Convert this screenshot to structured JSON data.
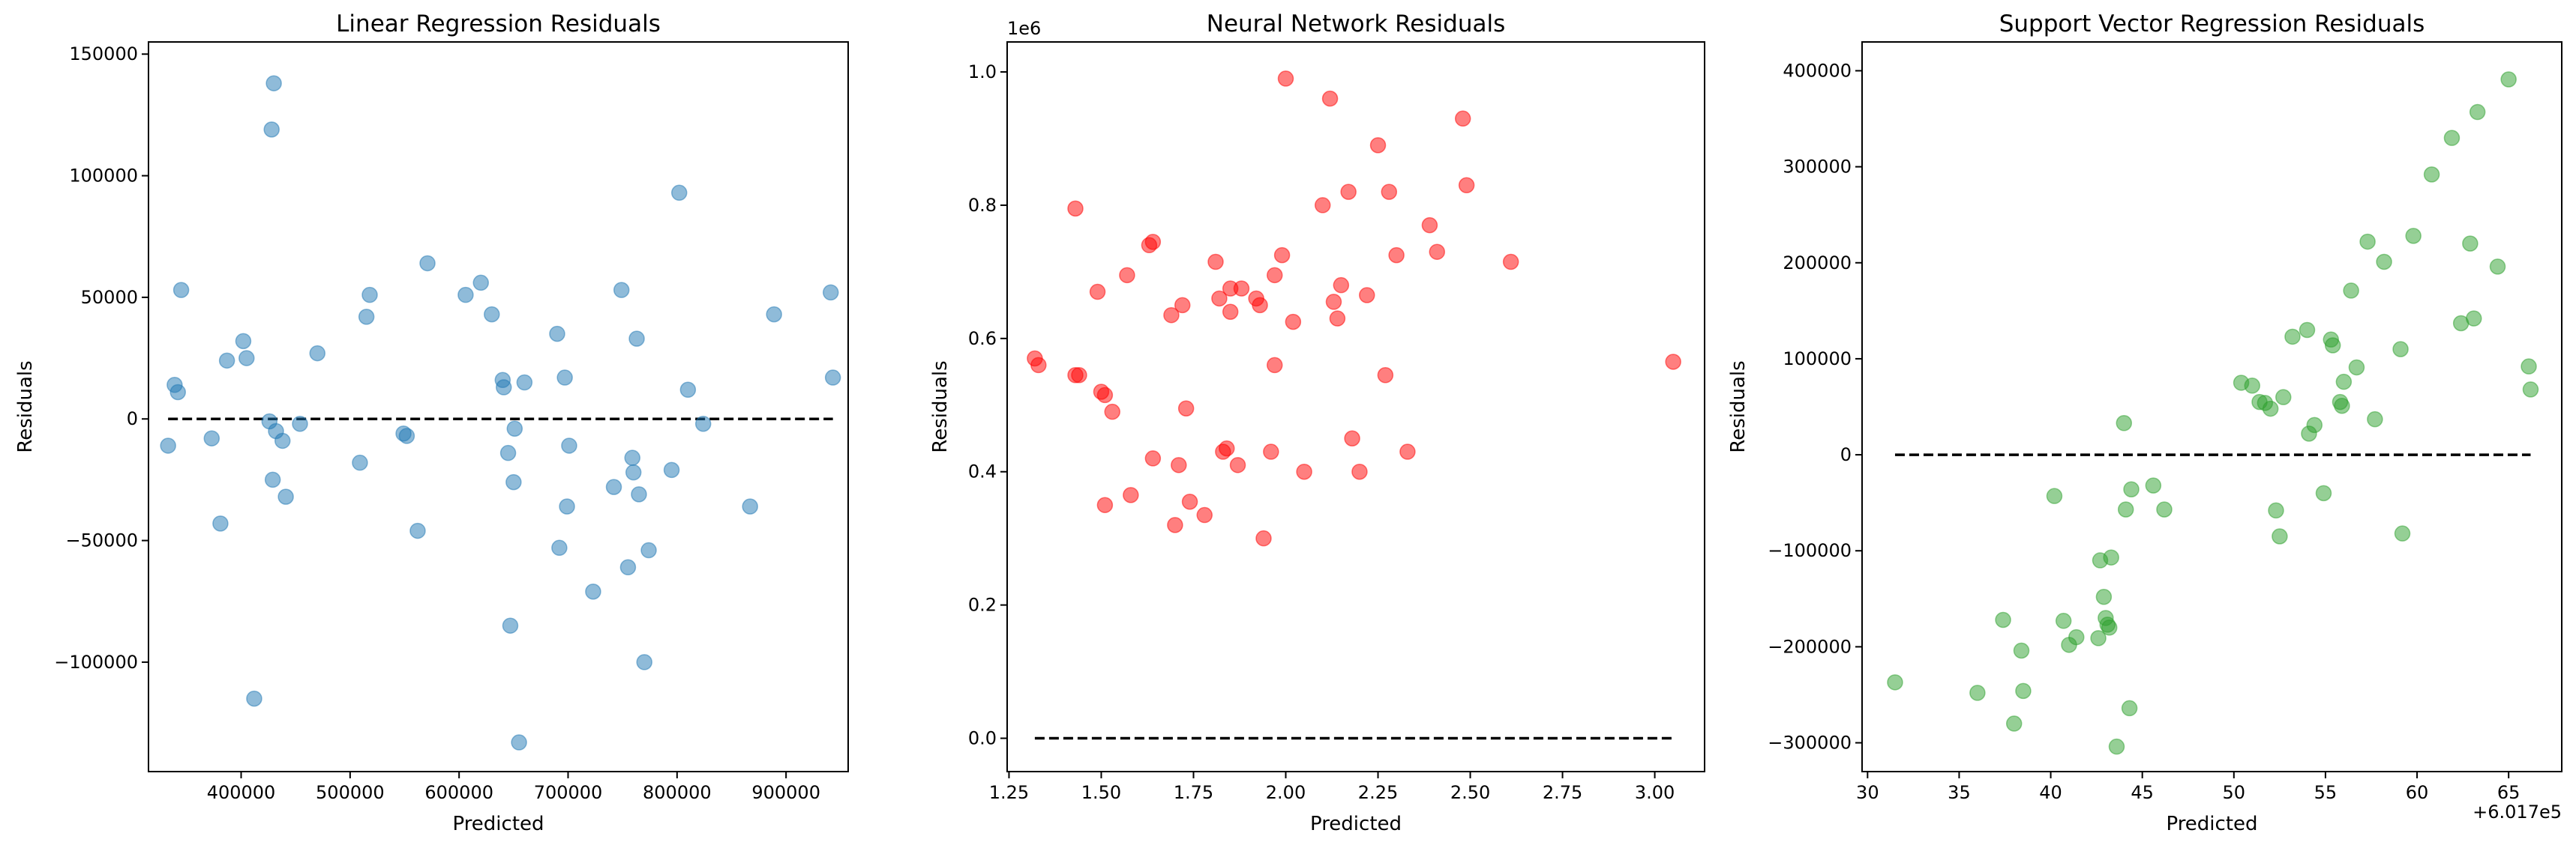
{
  "chart_data": [
    {
      "type": "scatter",
      "title": "Linear Regression Residuals",
      "xlabel": "Predicted",
      "ylabel": "Residuals",
      "color": "#1f77b4",
      "xlim": [
        315000,
        957000
      ],
      "ylim": [
        -145000,
        155000
      ],
      "xticks": [
        400000,
        500000,
        600000,
        700000,
        800000,
        900000
      ],
      "xticklabels": [
        "400000",
        "500000",
        "600000",
        "700000",
        "800000",
        "900000"
      ],
      "yticks": [
        -100000,
        -50000,
        0,
        50000,
        100000,
        150000
      ],
      "yticklabels": [
        "−100000",
        "−50000",
        "0",
        "50000",
        "100000",
        "150000"
      ],
      "offset_label": "",
      "reference_line": {
        "y": 0,
        "x": [
          333000,
          943000
        ],
        "style": "dashed",
        "color": "#000000"
      },
      "points": [
        [
          333000,
          -11000
        ],
        [
          339000,
          14000
        ],
        [
          342000,
          11000
        ],
        [
          345000,
          53000
        ],
        [
          373000,
          -8000
        ],
        [
          381000,
          -43000
        ],
        [
          387000,
          24000
        ],
        [
          402000,
          32000
        ],
        [
          405000,
          25000
        ],
        [
          412000,
          -115000
        ],
        [
          426000,
          -1000
        ],
        [
          428000,
          119000
        ],
        [
          430000,
          138000
        ],
        [
          429000,
          -25000
        ],
        [
          432000,
          -5000
        ],
        [
          438000,
          -9000
        ],
        [
          441000,
          -32000
        ],
        [
          454000,
          -2000
        ],
        [
          470000,
          27000
        ],
        [
          509000,
          -18000
        ],
        [
          515000,
          42000
        ],
        [
          518000,
          51000
        ],
        [
          549000,
          -6000
        ],
        [
          552000,
          -7000
        ],
        [
          562000,
          -46000
        ],
        [
          571000,
          64000
        ],
        [
          606000,
          51000
        ],
        [
          620000,
          56000
        ],
        [
          630000,
          43000
        ],
        [
          640000,
          16000
        ],
        [
          641000,
          13000
        ],
        [
          645000,
          -14000
        ],
        [
          647000,
          -85000
        ],
        [
          650000,
          -26000
        ],
        [
          651000,
          -4000
        ],
        [
          660000,
          15000
        ],
        [
          655000,
          -133000
        ],
        [
          690000,
          35000
        ],
        [
          692000,
          -53000
        ],
        [
          697000,
          17000
        ],
        [
          699000,
          -36000
        ],
        [
          701000,
          -11000
        ],
        [
          723000,
          -71000
        ],
        [
          742000,
          -28000
        ],
        [
          749000,
          53000
        ],
        [
          755000,
          -61000
        ],
        [
          759000,
          -16000
        ],
        [
          760000,
          -22000
        ],
        [
          763000,
          33000
        ],
        [
          765000,
          -31000
        ],
        [
          770000,
          -100000
        ],
        [
          774000,
          -54000
        ],
        [
          795000,
          -21000
        ],
        [
          802000,
          93000
        ],
        [
          810000,
          12000
        ],
        [
          824000,
          -2000
        ],
        [
          867000,
          -36000
        ],
        [
          889000,
          43000
        ],
        [
          941000,
          52000
        ],
        [
          943000,
          17000
        ]
      ]
    },
    {
      "type": "scatter",
      "title": "Neural Network Residuals",
      "xlabel": "Predicted",
      "ylabel": "Residuals",
      "color": "#ff0000",
      "xlim": [
        1.245,
        3.135
      ],
      "ylim": [
        -0.05,
        1.045
      ],
      "xticks": [
        1.25,
        1.5,
        1.75,
        2.0,
        2.25,
        2.5,
        2.75,
        3.0
      ],
      "xticklabels": [
        "1.25",
        "1.50",
        "1.75",
        "2.00",
        "2.25",
        "2.50",
        "2.75",
        "3.00"
      ],
      "yticks": [
        0.0,
        0.2,
        0.4,
        0.6,
        0.8,
        1.0
      ],
      "yticklabels": [
        "0.0",
        "0.2",
        "0.4",
        "0.6",
        "0.8",
        "1.0"
      ],
      "offset_label": "1e6",
      "reference_line": {
        "y": 0,
        "x": [
          1.32,
          3.05
        ],
        "style": "dashed",
        "color": "#000000"
      },
      "points": [
        [
          1.32,
          0.57
        ],
        [
          1.33,
          0.56
        ],
        [
          1.43,
          0.795
        ],
        [
          1.43,
          0.545
        ],
        [
          1.44,
          0.545
        ],
        [
          1.49,
          0.67
        ],
        [
          1.5,
          0.52
        ],
        [
          1.51,
          0.515
        ],
        [
          1.51,
          0.35
        ],
        [
          1.53,
          0.49
        ],
        [
          1.57,
          0.695
        ],
        [
          1.58,
          0.365
        ],
        [
          1.63,
          0.74
        ],
        [
          1.64,
          0.745
        ],
        [
          1.64,
          0.42
        ],
        [
          1.69,
          0.635
        ],
        [
          1.7,
          0.32
        ],
        [
          1.71,
          0.41
        ],
        [
          1.72,
          0.65
        ],
        [
          1.73,
          0.495
        ],
        [
          1.74,
          0.355
        ],
        [
          1.78,
          0.335
        ],
        [
          1.81,
          0.715
        ],
        [
          1.82,
          0.66
        ],
        [
          1.83,
          0.43
        ],
        [
          1.84,
          0.435
        ],
        [
          1.85,
          0.675
        ],
        [
          1.85,
          0.64
        ],
        [
          1.87,
          0.41
        ],
        [
          1.88,
          0.675
        ],
        [
          1.92,
          0.66
        ],
        [
          1.93,
          0.65
        ],
        [
          1.94,
          0.3
        ],
        [
          1.96,
          0.43
        ],
        [
          1.97,
          0.695
        ],
        [
          1.97,
          0.56
        ],
        [
          1.99,
          0.725
        ],
        [
          2.0,
          0.99
        ],
        [
          2.02,
          0.625
        ],
        [
          2.05,
          0.4
        ],
        [
          2.1,
          0.8
        ],
        [
          2.12,
          0.96
        ],
        [
          2.13,
          0.655
        ],
        [
          2.14,
          0.63
        ],
        [
          2.15,
          0.68
        ],
        [
          2.17,
          0.82
        ],
        [
          2.18,
          0.45
        ],
        [
          2.2,
          0.4
        ],
        [
          2.22,
          0.665
        ],
        [
          2.25,
          0.89
        ],
        [
          2.27,
          0.545
        ],
        [
          2.28,
          0.82
        ],
        [
          2.3,
          0.725
        ],
        [
          2.33,
          0.43
        ],
        [
          2.39,
          0.77
        ],
        [
          2.41,
          0.73
        ],
        [
          2.48,
          0.93
        ],
        [
          2.49,
          0.83
        ],
        [
          2.61,
          0.715
        ],
        [
          3.05,
          0.565
        ]
      ]
    },
    {
      "type": "scatter",
      "title": "Support Vector Regression Residuals",
      "xlabel": "Predicted",
      "ylabel": "Residuals",
      "color": "#2ca02c",
      "xlim": [
        29.7,
        67.9
      ],
      "ylim": [
        -330000,
        430000
      ],
      "xticks": [
        30,
        35,
        40,
        45,
        50,
        55,
        60,
        65
      ],
      "xticklabels": [
        "30",
        "35",
        "40",
        "45",
        "50",
        "55",
        "60",
        "65"
      ],
      "yticks": [
        -300000,
        -200000,
        -100000,
        0,
        100000,
        200000,
        300000,
        400000
      ],
      "yticklabels": [
        "−300000",
        "−200000",
        "−100000",
        "0",
        "100000",
        "200000",
        "300000",
        "400000"
      ],
      "offset_label": "+6.017e5",
      "reference_line": {
        "y": 0,
        "x": [
          31.5,
          66.2
        ],
        "style": "dashed",
        "color": "#000000"
      },
      "points": [
        [
          31.5,
          -237000
        ],
        [
          36.0,
          -248000
        ],
        [
          37.4,
          -172000
        ],
        [
          38.0,
          -280000
        ],
        [
          38.4,
          -204000
        ],
        [
          38.5,
          -246000
        ],
        [
          40.2,
          -43000
        ],
        [
          40.7,
          -173000
        ],
        [
          41.0,
          -198000
        ],
        [
          41.4,
          -190000
        ],
        [
          42.6,
          -191000
        ],
        [
          42.7,
          -110000
        ],
        [
          42.9,
          -148000
        ],
        [
          43.0,
          -170000
        ],
        [
          43.1,
          -177000
        ],
        [
          43.2,
          -180000
        ],
        [
          43.3,
          -107000
        ],
        [
          43.6,
          -304000
        ],
        [
          44.0,
          33000
        ],
        [
          44.1,
          -57000
        ],
        [
          44.3,
          -264000
        ],
        [
          44.4,
          -36000
        ],
        [
          45.6,
          -32000
        ],
        [
          46.2,
          -57000
        ],
        [
          50.4,
          75000
        ],
        [
          51.0,
          72000
        ],
        [
          51.4,
          55000
        ],
        [
          51.7,
          54000
        ],
        [
          52.0,
          48000
        ],
        [
          52.3,
          -58000
        ],
        [
          52.5,
          -85000
        ],
        [
          52.7,
          60000
        ],
        [
          53.2,
          123000
        ],
        [
          54.0,
          130000
        ],
        [
          54.1,
          22000
        ],
        [
          54.4,
          31000
        ],
        [
          54.9,
          -40000
        ],
        [
          55.3,
          120000
        ],
        [
          55.4,
          114000
        ],
        [
          55.8,
          55000
        ],
        [
          55.9,
          51000
        ],
        [
          56.0,
          76000
        ],
        [
          56.4,
          171000
        ],
        [
          56.7,
          91000
        ],
        [
          57.3,
          222000
        ],
        [
          57.7,
          37000
        ],
        [
          58.2,
          201000
        ],
        [
          59.1,
          110000
        ],
        [
          59.2,
          -82000
        ],
        [
          59.8,
          228000
        ],
        [
          60.8,
          292000
        ],
        [
          61.9,
          330000
        ],
        [
          62.4,
          137000
        ],
        [
          62.9,
          220000
        ],
        [
          63.1,
          142000
        ],
        [
          63.3,
          357000
        ],
        [
          64.4,
          196000
        ],
        [
          65.0,
          391000
        ],
        [
          66.1,
          92000
        ],
        [
          66.2,
          68000
        ]
      ]
    }
  ]
}
